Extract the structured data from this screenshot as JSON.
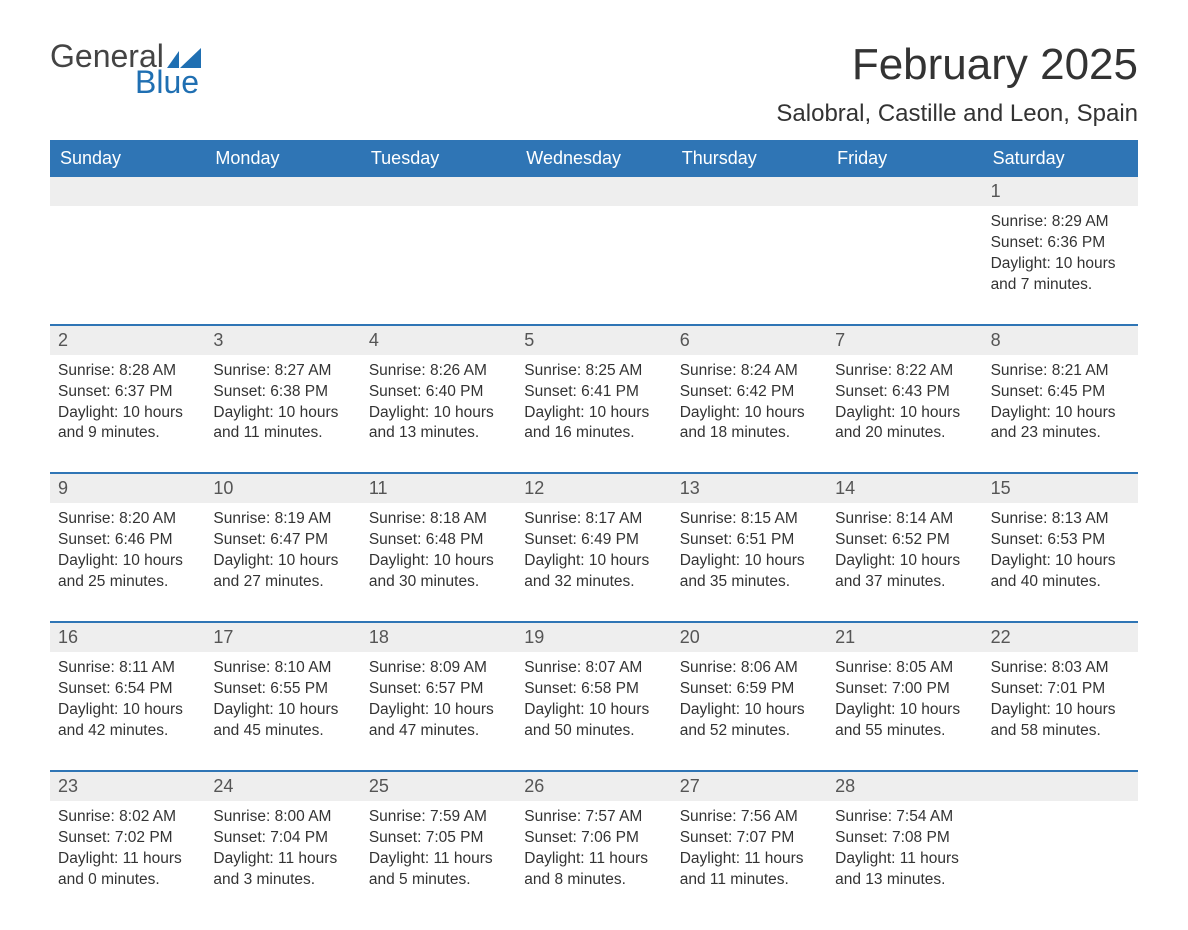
{
  "brand": {
    "word1": "General",
    "word2": "Blue"
  },
  "title": "February 2025",
  "location": "Salobral, Castille and Leon, Spain",
  "colors": {
    "header_bg": "#2f75b5",
    "header_text": "#ffffff",
    "daynum_bg": "#eeeeee",
    "rule": "#2f75b5",
    "body_text": "#333333",
    "logo_blue": "#1f6fb2"
  },
  "weekdays": [
    "Sunday",
    "Monday",
    "Tuesday",
    "Wednesday",
    "Thursday",
    "Friday",
    "Saturday"
  ],
  "labels": {
    "sunrise": "Sunrise",
    "sunset": "Sunset",
    "daylight": "Daylight"
  },
  "weeks": [
    [
      null,
      null,
      null,
      null,
      null,
      null,
      {
        "d": "1",
        "sunrise": "8:29 AM",
        "sunset": "6:36 PM",
        "daylight": "10 hours and 7 minutes."
      }
    ],
    [
      {
        "d": "2",
        "sunrise": "8:28 AM",
        "sunset": "6:37 PM",
        "daylight": "10 hours and 9 minutes."
      },
      {
        "d": "3",
        "sunrise": "8:27 AM",
        "sunset": "6:38 PM",
        "daylight": "10 hours and 11 minutes."
      },
      {
        "d": "4",
        "sunrise": "8:26 AM",
        "sunset": "6:40 PM",
        "daylight": "10 hours and 13 minutes."
      },
      {
        "d": "5",
        "sunrise": "8:25 AM",
        "sunset": "6:41 PM",
        "daylight": "10 hours and 16 minutes."
      },
      {
        "d": "6",
        "sunrise": "8:24 AM",
        "sunset": "6:42 PM",
        "daylight": "10 hours and 18 minutes."
      },
      {
        "d": "7",
        "sunrise": "8:22 AM",
        "sunset": "6:43 PM",
        "daylight": "10 hours and 20 minutes."
      },
      {
        "d": "8",
        "sunrise": "8:21 AM",
        "sunset": "6:45 PM",
        "daylight": "10 hours and 23 minutes."
      }
    ],
    [
      {
        "d": "9",
        "sunrise": "8:20 AM",
        "sunset": "6:46 PM",
        "daylight": "10 hours and 25 minutes."
      },
      {
        "d": "10",
        "sunrise": "8:19 AM",
        "sunset": "6:47 PM",
        "daylight": "10 hours and 27 minutes."
      },
      {
        "d": "11",
        "sunrise": "8:18 AM",
        "sunset": "6:48 PM",
        "daylight": "10 hours and 30 minutes."
      },
      {
        "d": "12",
        "sunrise": "8:17 AM",
        "sunset": "6:49 PM",
        "daylight": "10 hours and 32 minutes."
      },
      {
        "d": "13",
        "sunrise": "8:15 AM",
        "sunset": "6:51 PM",
        "daylight": "10 hours and 35 minutes."
      },
      {
        "d": "14",
        "sunrise": "8:14 AM",
        "sunset": "6:52 PM",
        "daylight": "10 hours and 37 minutes."
      },
      {
        "d": "15",
        "sunrise": "8:13 AM",
        "sunset": "6:53 PM",
        "daylight": "10 hours and 40 minutes."
      }
    ],
    [
      {
        "d": "16",
        "sunrise": "8:11 AM",
        "sunset": "6:54 PM",
        "daylight": "10 hours and 42 minutes."
      },
      {
        "d": "17",
        "sunrise": "8:10 AM",
        "sunset": "6:55 PM",
        "daylight": "10 hours and 45 minutes."
      },
      {
        "d": "18",
        "sunrise": "8:09 AM",
        "sunset": "6:57 PM",
        "daylight": "10 hours and 47 minutes."
      },
      {
        "d": "19",
        "sunrise": "8:07 AM",
        "sunset": "6:58 PM",
        "daylight": "10 hours and 50 minutes."
      },
      {
        "d": "20",
        "sunrise": "8:06 AM",
        "sunset": "6:59 PM",
        "daylight": "10 hours and 52 minutes."
      },
      {
        "d": "21",
        "sunrise": "8:05 AM",
        "sunset": "7:00 PM",
        "daylight": "10 hours and 55 minutes."
      },
      {
        "d": "22",
        "sunrise": "8:03 AM",
        "sunset": "7:01 PM",
        "daylight": "10 hours and 58 minutes."
      }
    ],
    [
      {
        "d": "23",
        "sunrise": "8:02 AM",
        "sunset": "7:02 PM",
        "daylight": "11 hours and 0 minutes."
      },
      {
        "d": "24",
        "sunrise": "8:00 AM",
        "sunset": "7:04 PM",
        "daylight": "11 hours and 3 minutes."
      },
      {
        "d": "25",
        "sunrise": "7:59 AM",
        "sunset": "7:05 PM",
        "daylight": "11 hours and 5 minutes."
      },
      {
        "d": "26",
        "sunrise": "7:57 AM",
        "sunset": "7:06 PM",
        "daylight": "11 hours and 8 minutes."
      },
      {
        "d": "27",
        "sunrise": "7:56 AM",
        "sunset": "7:07 PM",
        "daylight": "11 hours and 11 minutes."
      },
      {
        "d": "28",
        "sunrise": "7:54 AM",
        "sunset": "7:08 PM",
        "daylight": "11 hours and 13 minutes."
      },
      null
    ]
  ]
}
